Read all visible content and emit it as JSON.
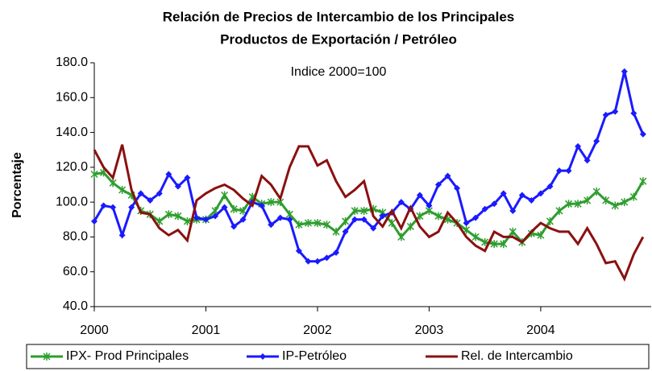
{
  "chart_data": {
    "type": "line",
    "title": [
      "Relación de Precios de Intercambio de los Principales",
      "Productos de Exportación / Petróleo"
    ],
    "subtitle": "Indice 2000=100",
    "y_label": "Porcentaje",
    "categories": [
      "2000",
      null,
      null,
      null,
      null,
      null,
      null,
      null,
      null,
      null,
      null,
      null,
      "2001",
      null,
      null,
      null,
      null,
      null,
      null,
      null,
      null,
      null,
      null,
      null,
      "2002",
      null,
      null,
      null,
      null,
      null,
      null,
      null,
      null,
      null,
      null,
      null,
      "2003",
      null,
      null,
      null,
      null,
      null,
      null,
      null,
      null,
      null,
      null,
      null,
      "2004",
      null,
      null,
      null,
      null,
      null,
      null,
      null,
      null,
      null,
      null,
      null
    ],
    "ylim": [
      40,
      180
    ],
    "yticks": [
      {
        "value": 40,
        "label": "40.0"
      },
      {
        "value": 60,
        "label": "60.0"
      },
      {
        "value": 80,
        "label": "80.0"
      },
      {
        "value": 100,
        "label": "100.0"
      },
      {
        "value": 120,
        "label": "120.0"
      },
      {
        "value": 140,
        "label": "140.0"
      },
      {
        "value": 160,
        "label": "160.0"
      },
      {
        "value": 180,
        "label": "180.0"
      }
    ],
    "series": [
      {
        "name": "IPX- Prod Principales",
        "color": "#2e9e2e",
        "marker": "asterisk",
        "values": [
          116,
          117,
          111,
          107,
          104,
          95,
          93,
          89,
          93,
          92,
          89,
          90,
          90,
          95,
          104,
          96,
          95,
          103,
          99,
          100,
          100,
          93,
          87,
          88,
          88,
          87,
          83,
          89,
          95,
          95,
          96,
          94,
          88,
          80,
          86,
          92,
          95,
          92,
          90,
          88,
          84,
          80,
          77,
          76,
          76,
          83,
          77,
          82,
          81,
          89,
          95,
          99,
          99,
          101,
          106,
          101,
          98,
          100,
          103,
          112
        ]
      },
      {
        "name": "IP-Petróleo",
        "color": "#1a1aff",
        "marker": "diamond",
        "values": [
          89,
          98,
          97,
          81,
          97,
          105,
          101,
          105,
          116,
          109,
          114,
          91,
          90,
          92,
          97,
          86,
          90,
          100,
          98,
          87,
          91,
          90,
          72,
          66,
          66,
          68,
          71,
          83,
          90,
          90,
          85,
          92,
          94,
          100,
          96,
          104,
          98,
          110,
          115,
          108,
          88,
          91,
          96,
          99,
          105,
          95,
          104,
          101,
          105,
          109,
          118,
          118,
          132,
          124,
          135,
          150,
          152,
          175,
          151,
          139
        ]
      },
      {
        "name": "Rel. de Intercambio",
        "color": "#8b1010",
        "marker": "none",
        "values": [
          130,
          120,
          114,
          133,
          107,
          94,
          93,
          85,
          81,
          84,
          78,
          101,
          105,
          108,
          110,
          107,
          102,
          98,
          115,
          110,
          102,
          120,
          132,
          132,
          121,
          124,
          112,
          103,
          107,
          112,
          92,
          86,
          95,
          85,
          97,
          86,
          80,
          83,
          94,
          88,
          80,
          75,
          72,
          83,
          80,
          80,
          77,
          83,
          88,
          85,
          83,
          83,
          76,
          85,
          76,
          65,
          66,
          56,
          70,
          80
        ]
      }
    ]
  }
}
